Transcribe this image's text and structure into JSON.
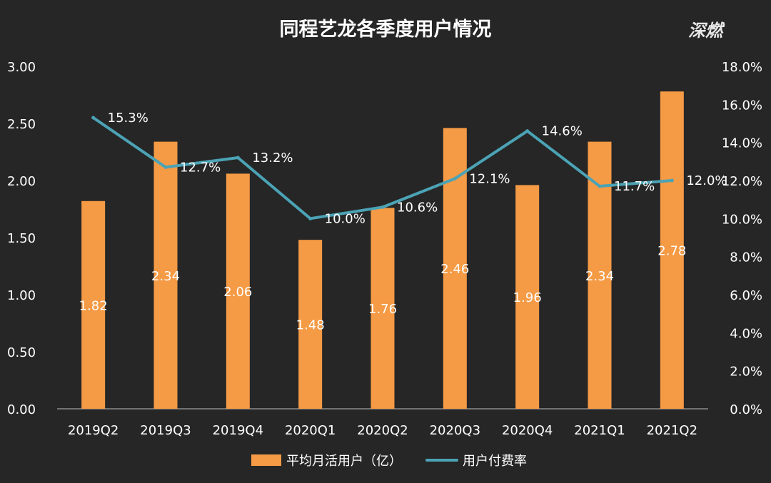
{
  "logo_text": "深燃",
  "chart_data": {
    "type": "bar",
    "title": "同程艺龙各季度用户情况",
    "categories": [
      "2019Q2",
      "2019Q3",
      "2019Q4",
      "2020Q1",
      "2020Q2",
      "2020Q3",
      "2020Q4",
      "2021Q1",
      "2021Q2"
    ],
    "ylim": [
      0,
      3.0
    ],
    "y2lim": [
      0,
      18.0
    ],
    "y_ticks": [
      "0.00",
      "0.50",
      "1.00",
      "1.50",
      "2.00",
      "2.50",
      "3.00"
    ],
    "y2_ticks": [
      "0.0%",
      "2.0%",
      "4.0%",
      "6.0%",
      "8.0%",
      "10.0%",
      "12.0%",
      "14.0%",
      "16.0%",
      "18.0%"
    ],
    "series": [
      {
        "name": "平均月活用户（亿）",
        "type": "bar",
        "axis": "left",
        "color": "#F59A45",
        "values": [
          1.82,
          2.34,
          2.06,
          1.48,
          1.76,
          2.46,
          1.96,
          2.34,
          2.78
        ],
        "labels": [
          "1.82",
          "2.34",
          "2.06",
          "1.48",
          "1.76",
          "2.46",
          "1.96",
          "2.34",
          "2.78"
        ]
      },
      {
        "name": "用户付费率",
        "type": "line",
        "axis": "right",
        "color": "#4BA3B5",
        "values": [
          15.3,
          12.7,
          13.2,
          10.0,
          10.6,
          12.1,
          14.6,
          11.7,
          12.0
        ],
        "labels": [
          "15.3%",
          "12.7%",
          "13.2%",
          "10.0%",
          "10.6%",
          "12.1%",
          "14.6%",
          "11.7%",
          "12.0%"
        ]
      }
    ],
    "legend_position": "bottom-center"
  },
  "colors": {
    "background": "#262626",
    "text": "#FFFFFF",
    "bar": "#F59A45",
    "line": "#4BA3B5",
    "axis": "#BFBFBF"
  }
}
